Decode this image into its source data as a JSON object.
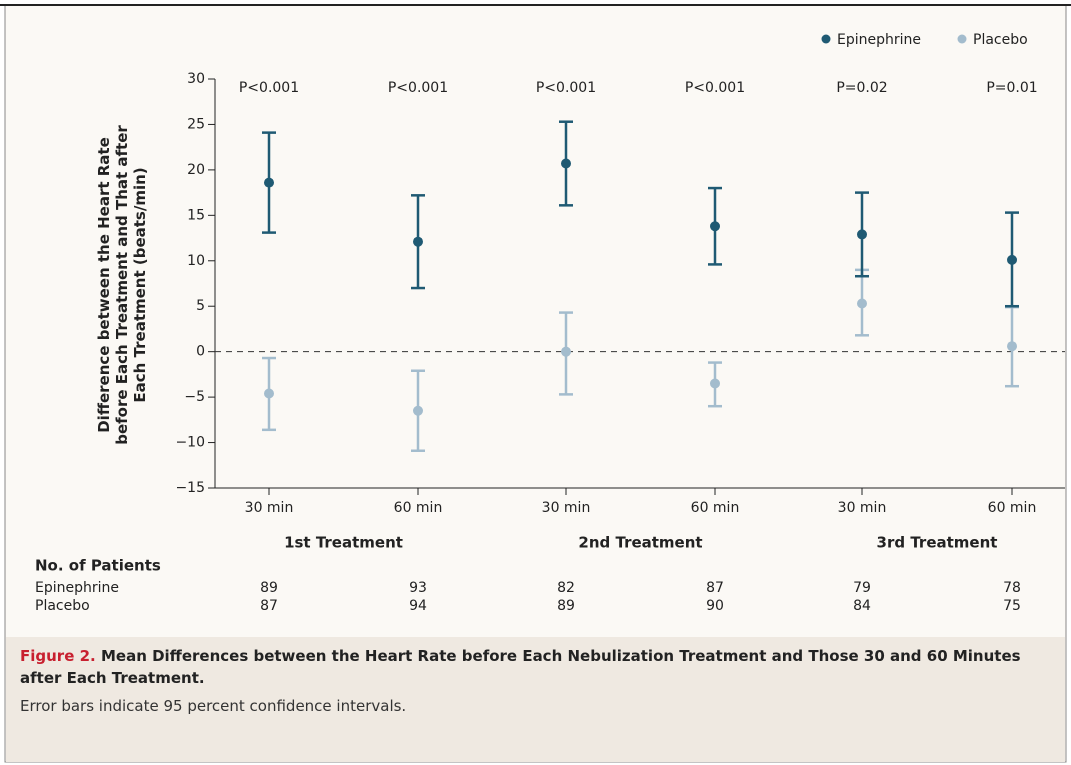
{
  "chart_data": {
    "type": "errorbar",
    "y_label": [
      "Difference between the Heart Rate",
      "before Each Treatment and That after",
      "Each Treatment (beats/min)"
    ],
    "ylim": [
      -15,
      30
    ],
    "yticks": [
      {
        "value": -15,
        "label": "−15"
      },
      {
        "value": -10,
        "label": "−10"
      },
      {
        "value": -5,
        "label": "−5"
      },
      0,
      5,
      10,
      15,
      20,
      25,
      30
    ],
    "categories": [
      "30 min",
      "60 min",
      "30 min",
      "60 min",
      "30 min",
      "60 min"
    ],
    "groups": [
      "1st Treatment",
      "2nd Treatment",
      "3rd Treatment"
    ],
    "annotations": [
      "P<0.001",
      "P<0.001",
      "P<0.001",
      "P<0.001",
      "P=0.02",
      "P=0.01"
    ],
    "series": [
      {
        "name": "Epinephrine",
        "color": "#1f5a73",
        "values": [
          18.6,
          12.1,
          20.7,
          13.8,
          12.9,
          10.1
        ],
        "lower": [
          13.1,
          7.0,
          16.1,
          9.6,
          8.3,
          5.0
        ],
        "upper": [
          24.1,
          17.2,
          25.3,
          18.0,
          17.5,
          15.3
        ]
      },
      {
        "name": "Placebo",
        "color": "#a3bccd",
        "values": [
          -4.6,
          -6.5,
          0.0,
          -3.5,
          5.3,
          0.6
        ],
        "lower": [
          -8.6,
          -10.9,
          -4.7,
          -6.0,
          1.8,
          -3.8
        ],
        "upper": [
          -0.7,
          -2.1,
          4.3,
          -1.2,
          9.0,
          4.9
        ]
      }
    ],
    "legend": "top-right",
    "zero_line": true
  },
  "patients_table": {
    "title": "No. of Patients",
    "rows": [
      {
        "label": "Epinephrine",
        "values": [
          89,
          93,
          82,
          87,
          79,
          78
        ]
      },
      {
        "label": "Placebo",
        "values": [
          87,
          94,
          89,
          90,
          84,
          75
        ]
      }
    ]
  },
  "caption": {
    "label": "Figure 2.",
    "title": "Mean Differences between the Heart Rate before Each Nebulization Treatment and Those 30 and 60 Minutes after Each Treatment.",
    "note": "Error bars indicate 95 percent confidence intervals."
  }
}
